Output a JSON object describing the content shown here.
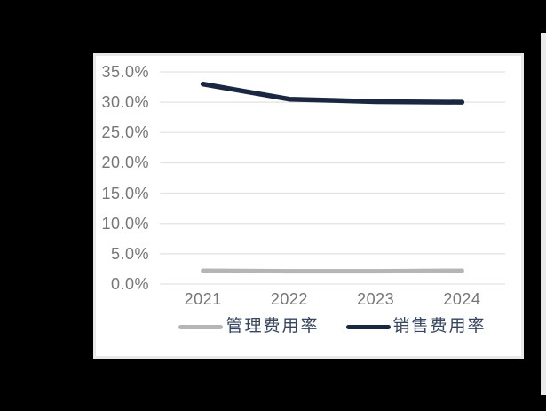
{
  "canvas": {
    "background_color": "#000000",
    "panel_background": "#ffffff",
    "panel_border_color": "#e9e9e9"
  },
  "chart_data": {
    "type": "line",
    "title": "",
    "xlabel": "",
    "ylabel": "",
    "categories": [
      "2021",
      "2022",
      "2023",
      "2024"
    ],
    "series": [
      {
        "name": "管理费用率",
        "values": [
          2.2,
          2.1,
          2.1,
          2.2
        ],
        "color": "#b5b5b5"
      },
      {
        "name": "销售费用率",
        "values": [
          33.0,
          30.5,
          30.1,
          30.0
        ],
        "color": "#1a2740"
      }
    ],
    "ylim": [
      0,
      35
    ],
    "ytick_step": 5,
    "ytick_labels": [
      "35.0%",
      "30.0%",
      "25.0%",
      "20.0%",
      "15.0%",
      "10.0%",
      "5.0%",
      "0.0%"
    ],
    "grid": true,
    "gridline_color": "#e2e2e2",
    "axis_label_color": "#767676",
    "legend_position": "bottom",
    "legend_text_color": "#37465f"
  }
}
